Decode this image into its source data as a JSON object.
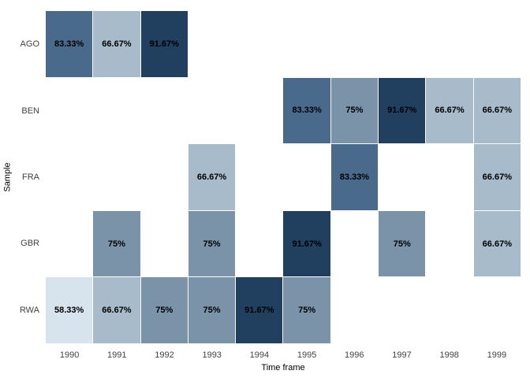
{
  "figure": {
    "background": "#ffffff"
  },
  "chart_data": {
    "type": "heatmap",
    "title": "",
    "xlabel": "Time frame",
    "ylabel": "Sample",
    "x_categories": [
      "1990",
      "1991",
      "1992",
      "1993",
      "1994",
      "1995",
      "1996",
      "1997",
      "1998",
      "1999"
    ],
    "y_categories": [
      "AGO",
      "BEN",
      "FRA",
      "GBR",
      "RWA"
    ],
    "values": [
      [
        83.33,
        66.67,
        91.67,
        null,
        null,
        null,
        null,
        null,
        null,
        null
      ],
      [
        null,
        null,
        null,
        null,
        null,
        83.33,
        75,
        91.67,
        66.67,
        66.67
      ],
      [
        null,
        null,
        null,
        66.67,
        null,
        null,
        83.33,
        null,
        null,
        66.67
      ],
      [
        null,
        75,
        null,
        75,
        null,
        91.67,
        null,
        75,
        null,
        66.67
      ],
      [
        58.33,
        66.67,
        75,
        75,
        91.67,
        75,
        null,
        null,
        null,
        null
      ]
    ],
    "cell_labels": [
      [
        "83.33%",
        "66.67%",
        "91.67%",
        "",
        "",
        "",
        "",
        "",
        "",
        ""
      ],
      [
        "",
        "",
        "",
        "",
        "",
        "83.33%",
        "75%",
        "91.67%",
        "66.67%",
        "66.67%"
      ],
      [
        "",
        "",
        "",
        "66.67%",
        "",
        "",
        "83.33%",
        "",
        "",
        "66.67%"
      ],
      [
        "",
        "75%",
        "",
        "75%",
        "",
        "91.67%",
        "",
        "75%",
        "",
        "66.67%"
      ],
      [
        "58.33%",
        "66.67%",
        "75%",
        "75%",
        "91.67%",
        "75%",
        "",
        "",
        "",
        ""
      ]
    ],
    "color_scale": {
      "58.33": "#d7e3ed",
      "66.67": "#a7bbca",
      "75": "#7b93a9",
      "83.33": "#4a6a8b",
      "91.67": "#213f5e"
    },
    "cell_label_color": "#000000",
    "axis_tick_color": "#424242",
    "gridlines": "off",
    "legend": "none"
  }
}
